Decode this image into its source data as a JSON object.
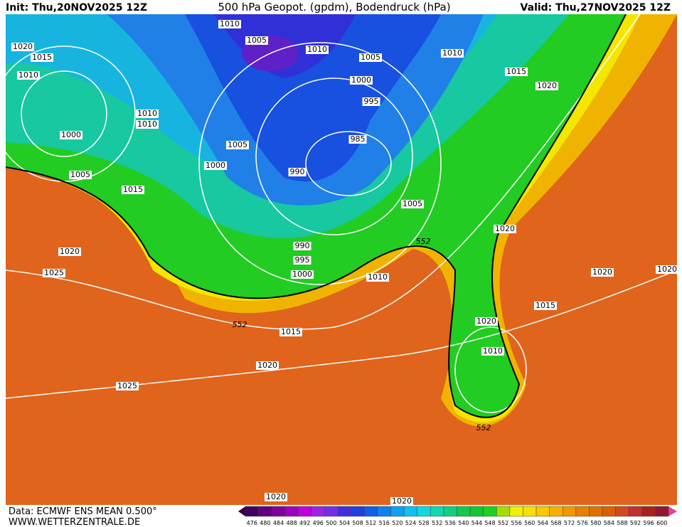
{
  "header": {
    "init": "Init: Thu,20NOV2025 12Z",
    "title": "500 hPa Geopot. (gpdm), Bodendruck (hPa)",
    "valid": "Valid: Thu,27NOV2025 12Z"
  },
  "isobar_labels": [
    "1010",
    "1005",
    "1010",
    "1005",
    "1010",
    "1015",
    "1020",
    "1020",
    "1015",
    "1010",
    "1000",
    "995",
    "1010",
    "1010",
    "1000",
    "985",
    "1005",
    "1000",
    "990",
    "1005",
    "1015",
    "1005",
    "1020",
    "552",
    "990",
    "995",
    "1020",
    "1000",
    "1025",
    "1010",
    "1020",
    "1020",
    "1015",
    "1020",
    "552",
    "1015",
    "1010",
    "1020",
    "1025",
    "552",
    "1020",
    "1020"
  ],
  "footer": {
    "data": "Data: ECMWF ENS MEAN 0.500°",
    "site": "WWW.WETTERZENTRALE.DE"
  },
  "colorbar": [
    476,
    480,
    484,
    488,
    492,
    496,
    500,
    504,
    508,
    512,
    516,
    520,
    524,
    528,
    532,
    536,
    540,
    544,
    548,
    552,
    556,
    560,
    564,
    568,
    572,
    576,
    580,
    584,
    588,
    592,
    596,
    600
  ]
}
